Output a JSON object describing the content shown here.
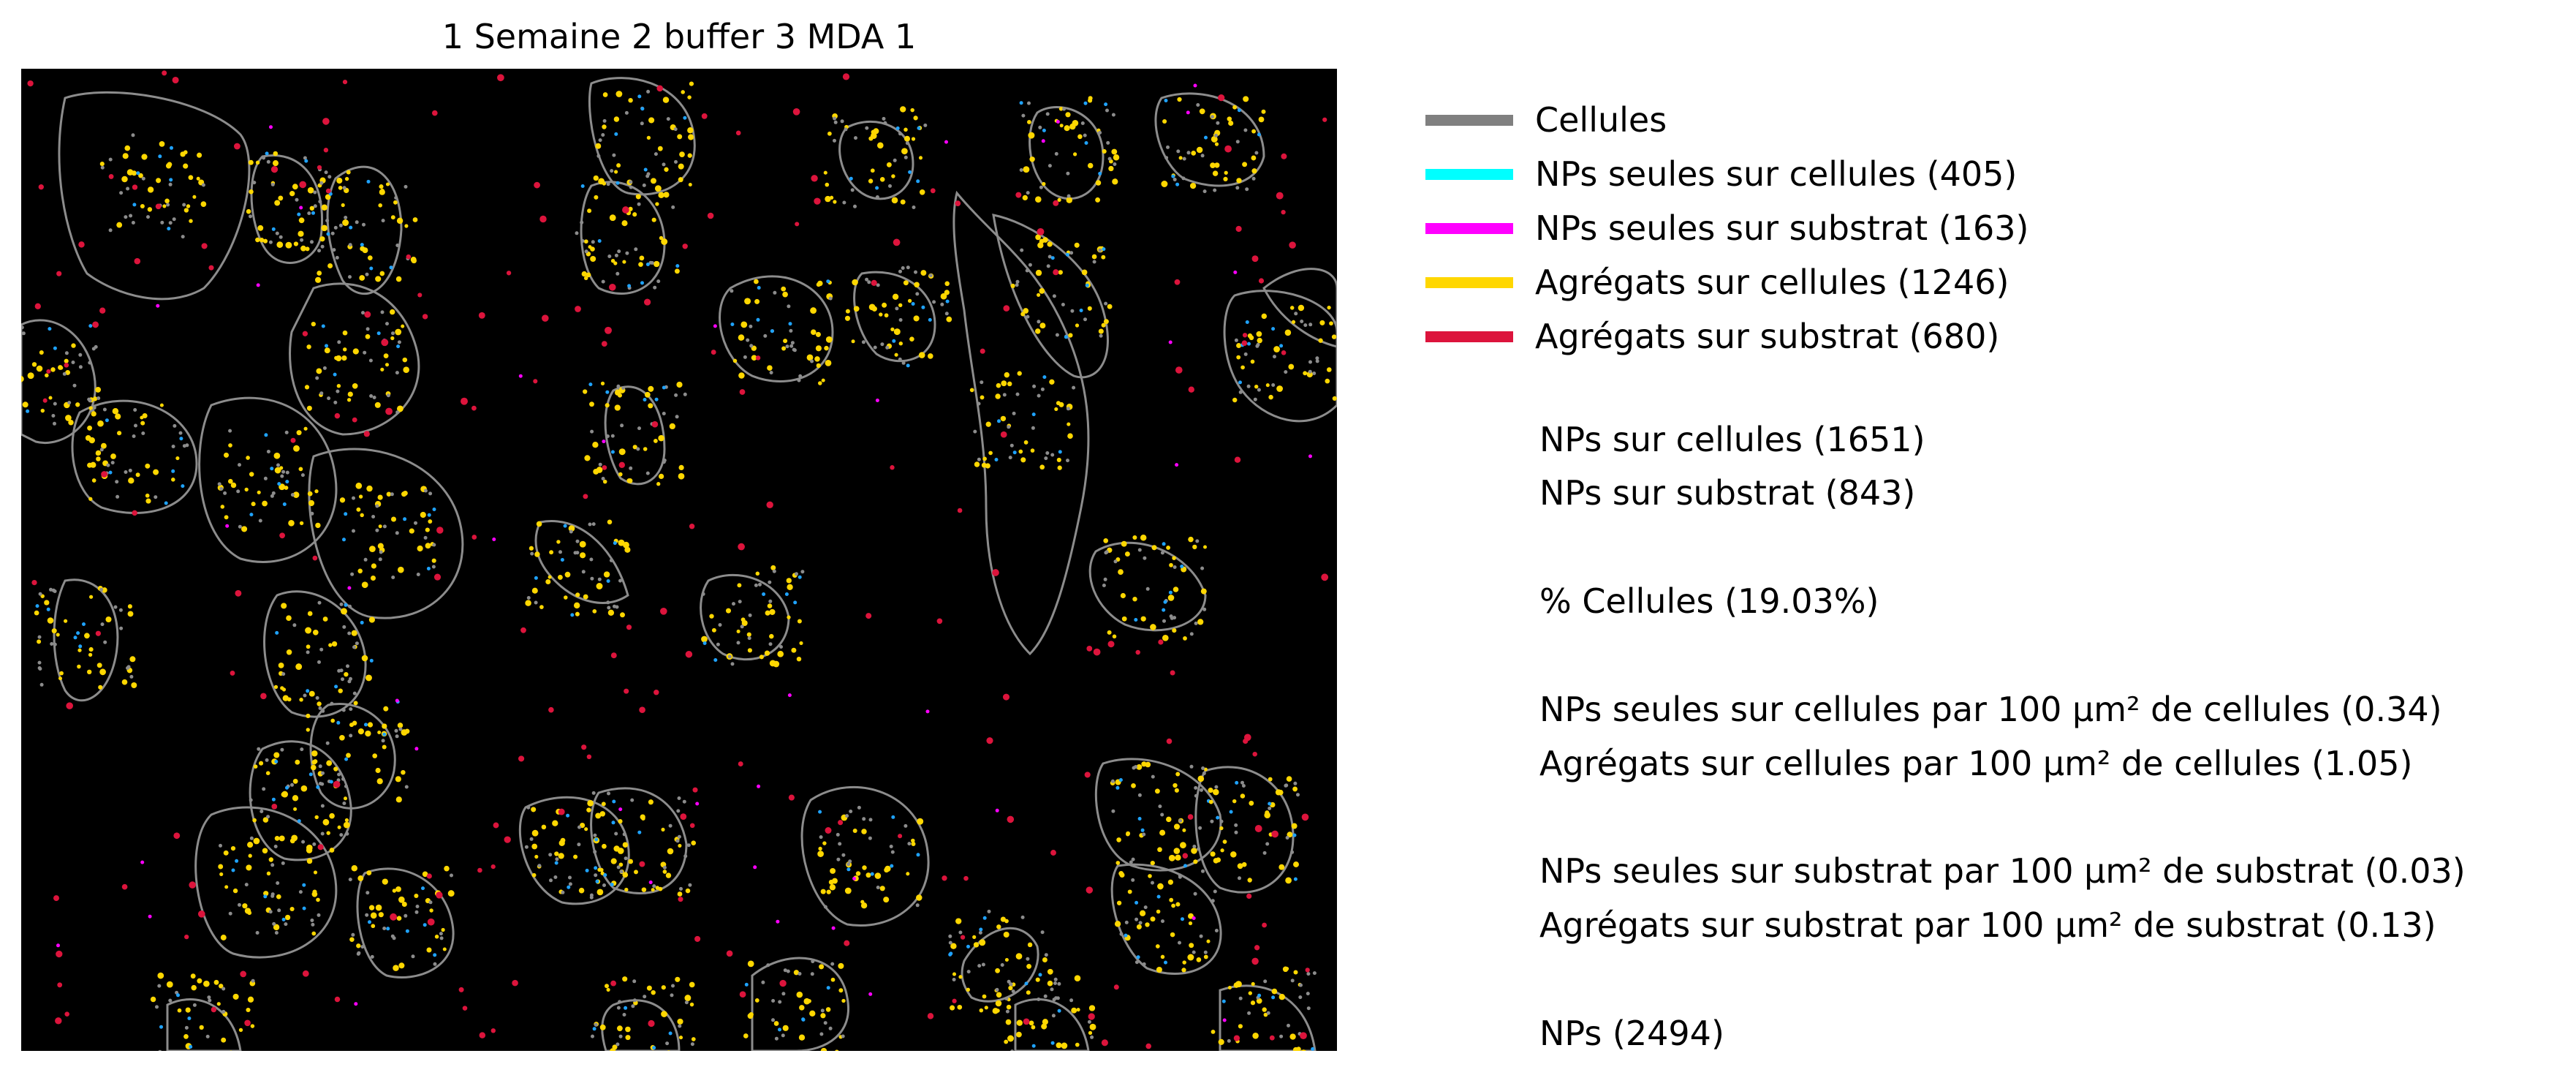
{
  "figure": {
    "title": "1 Semaine 2 buffer 3 MDA 1"
  },
  "image": {
    "description_icon": "fluorescence-microscopy-cells-nanoparticles",
    "background_color": "#000000"
  },
  "legend": {
    "items": [
      {
        "label": "Cellules",
        "color": "#808080"
      },
      {
        "label": "NPs seules sur cellules (405)",
        "color": "#00ffff"
      },
      {
        "label": "NPs seules sur substrat (163)",
        "color": "#ff00ff"
      },
      {
        "label": "Agrégats sur cellules (1246)",
        "color": "#ffd700"
      },
      {
        "label": "Agrégats sur substrat (680)",
        "color": "#dc143c"
      }
    ]
  },
  "stats": {
    "nps_cells": "NPs sur cellules (1651)",
    "nps_substrate": "NPs sur substrat (843)",
    "pct_cells": "% Cellules (19.03%)",
    "single_per_cells": "NPs seules sur cellules par 100 µm² de cellules (0.34)",
    "agg_per_cells": "Agrégats sur cellules par 100 µm² de cellules (1.05)",
    "single_per_substrate": "NPs seules sur substrat par 100 µm² de substrat (0.03)",
    "agg_per_substrate": "Agrégats sur substrat par 100 µm² de substrat (0.13)",
    "nps_total": "NPs (2494)"
  }
}
